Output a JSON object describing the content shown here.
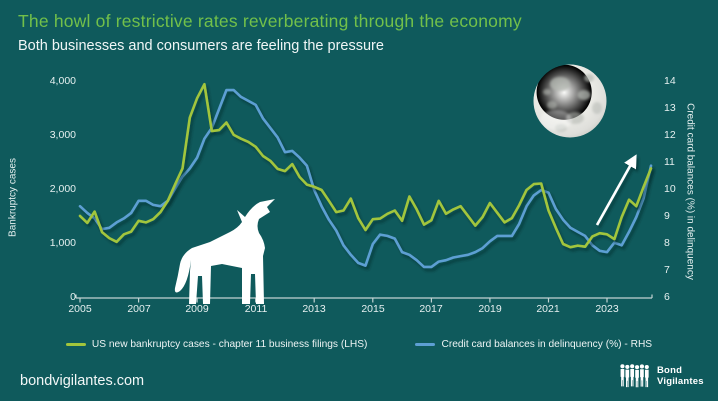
{
  "header": {
    "title": "The howl of restrictive rates reverberating through the economy",
    "subtitle": "Both businesses and consumers are feeling the pressure"
  },
  "colors": {
    "background": "#0f5a5c",
    "title_green": "#72c04a",
    "series_green": "#a2c53c",
    "series_blue": "#5d9fd3",
    "axis_line": "#c2d2d2",
    "text": "#eef4f4"
  },
  "chart_data": {
    "type": "line",
    "x_years": [
      2005,
      2005.25,
      2005.5,
      2005.75,
      2006,
      2006.25,
      2006.5,
      2006.75,
      2007,
      2007.25,
      2007.5,
      2007.75,
      2008,
      2008.25,
      2008.5,
      2008.75,
      2009,
      2009.25,
      2009.5,
      2009.75,
      2010,
      2010.25,
      2010.5,
      2010.75,
      2011,
      2011.25,
      2011.5,
      2011.75,
      2012,
      2012.25,
      2012.5,
      2012.75,
      2013,
      2013.25,
      2013.5,
      2013.75,
      2014,
      2014.25,
      2014.5,
      2014.75,
      2015,
      2015.25,
      2015.5,
      2015.75,
      2016,
      2016.25,
      2016.5,
      2016.75,
      2017,
      2017.25,
      2017.5,
      2017.75,
      2018,
      2018.25,
      2018.5,
      2018.75,
      2019,
      2019.25,
      2019.5,
      2019.75,
      2020,
      2020.25,
      2020.5,
      2020.75,
      2021,
      2021.25,
      2021.5,
      2021.75,
      2022,
      2022.25,
      2022.5,
      2022.75,
      2023,
      2023.25,
      2023.5,
      2023.75,
      2024,
      2024.25,
      2024.5
    ],
    "series": [
      {
        "name": "US new bankruptcy cases - chapter 11 business filings (LHS)",
        "axis": "left",
        "color": "#a2c53c",
        "values": [
          1520,
          1390,
          1600,
          1220,
          1110,
          1040,
          1180,
          1230,
          1430,
          1400,
          1460,
          1590,
          1800,
          2110,
          2400,
          3340,
          3700,
          3960,
          3090,
          3110,
          3250,
          3020,
          2950,
          2890,
          2800,
          2630,
          2540,
          2390,
          2350,
          2480,
          2240,
          2100,
          2060,
          2000,
          1800,
          1590,
          1620,
          1840,
          1480,
          1260,
          1460,
          1470,
          1560,
          1620,
          1430,
          1880,
          1640,
          1360,
          1440,
          1800,
          1560,
          1640,
          1700,
          1520,
          1340,
          1500,
          1760,
          1580,
          1400,
          1480,
          1720,
          2000,
          2110,
          2120,
          1620,
          1300,
          1000,
          940,
          970,
          950,
          1140,
          1200,
          1180,
          1090,
          1500,
          1820,
          1700,
          2060,
          2400
        ]
      },
      {
        "name": "Credit card balances in delinquency (%) - RHS",
        "axis": "right",
        "color": "#5d9fd3",
        "values": [
          9.4,
          9.15,
          8.95,
          8.55,
          8.6,
          8.8,
          8.95,
          9.15,
          9.6,
          9.6,
          9.45,
          9.4,
          9.6,
          10.05,
          10.5,
          10.8,
          11.2,
          11.9,
          12.3,
          13.0,
          13.7,
          13.7,
          13.45,
          13.3,
          13.15,
          12.65,
          12.3,
          11.95,
          11.4,
          11.45,
          11.2,
          10.9,
          10.0,
          9.4,
          8.9,
          8.5,
          7.95,
          7.6,
          7.3,
          7.2,
          8.0,
          8.35,
          8.3,
          8.2,
          7.7,
          7.6,
          7.4,
          7.15,
          7.15,
          7.35,
          7.4,
          7.5,
          7.55,
          7.6,
          7.7,
          7.85,
          8.1,
          8.3,
          8.3,
          8.3,
          8.75,
          9.4,
          9.8,
          10.0,
          9.9,
          9.3,
          8.9,
          8.6,
          8.45,
          8.3,
          7.95,
          7.75,
          7.7,
          8.05,
          7.95,
          8.45,
          9.0,
          9.7,
          10.9
        ]
      }
    ],
    "left_axis": {
      "label": "Bankruptcy cases",
      "min": 0,
      "max": 4000,
      "ticks": [
        "4,000",
        "3,000",
        "2,000",
        "1,000",
        "0"
      ]
    },
    "right_axis": {
      "label": "Credit card balances (%) in delinquency",
      "min": 6,
      "max": 14,
      "ticks": [
        "14",
        "13",
        "12",
        "11",
        "10",
        "9",
        "8",
        "7",
        "6"
      ]
    },
    "x_axis": {
      "ticks": [
        "2005",
        "2007",
        "2009",
        "2011",
        "2013",
        "2015",
        "2017",
        "2019",
        "2021",
        "2023"
      ]
    },
    "legend_position": "bottom",
    "grid": "off",
    "annotations": [
      "full-moon image top right",
      "howling wolf silhouette standing on x-axis",
      "white upward trend arrow over 2022-2024 rise"
    ]
  },
  "footer": {
    "website": "bondvigilantes.com",
    "brand_line1": "Bond",
    "brand_line2": "Vigilantes"
  }
}
